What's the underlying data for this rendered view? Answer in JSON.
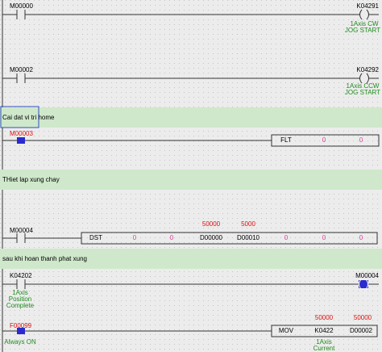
{
  "rungs": [
    {
      "contact": "M00000",
      "coil": "K04291",
      "coil_comment": [
        "1Axis CW",
        "JOG START"
      ]
    },
    {
      "contact": "M00002",
      "coil": "K04292",
      "coil_comment": [
        "1Axis CCW",
        "JOG START"
      ]
    },
    {
      "comment": "Cai dat vi tri home"
    },
    {
      "contact": "M00003",
      "box": [
        "FLT",
        0,
        0
      ]
    },
    {
      "comment": "THiet lap xung chay"
    },
    {
      "contact": "M00004",
      "box": [
        "DST",
        0,
        0,
        "D00000",
        "D00010",
        0,
        0,
        0
      ],
      "monitor": [
        50000,
        5000
      ]
    },
    {
      "comment": "sau khi hoan thanh phat xung"
    },
    {
      "contact": "K04202",
      "contact_comment": [
        "1Axis",
        "Position",
        "Complete"
      ],
      "coil": "M00004"
    },
    {
      "contact": "F00099",
      "contact_comment": [
        "Always ON"
      ],
      "box": [
        "MOV",
        "K0422",
        "D00002"
      ],
      "monitor": [
        50000,
        50000
      ],
      "operand_comment": [
        "1Axis",
        "Current"
      ]
    }
  ]
}
